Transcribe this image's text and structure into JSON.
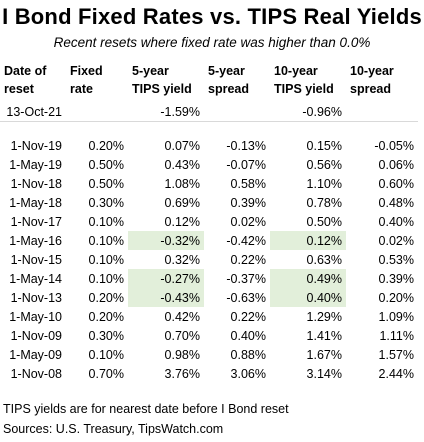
{
  "title": "I Bond Fixed Rates vs. TIPS Real Yields",
  "subtitle": "Recent resets where fixed rate was higher than 0.0%",
  "headers": [
    [
      "Date of",
      "reset"
    ],
    [
      "Fixed",
      "rate"
    ],
    [
      "5-year",
      "TIPS yield"
    ],
    [
      "5-year",
      "spread"
    ],
    [
      "10-year",
      "TIPS yield"
    ],
    [
      "10-year",
      "spread"
    ]
  ],
  "reference_row": {
    "date": "13-Oct-21",
    "tips5": "-1.59%",
    "tips10": "-0.96%"
  },
  "rows": [
    {
      "date": "1-Nov-19",
      "fixed": "0.20%",
      "tips5": "0.07%",
      "spread5": "-0.13%",
      "tips10": "0.15%",
      "spread10": "-0.05%"
    },
    {
      "date": "1-May-19",
      "fixed": "0.50%",
      "tips5": "0.43%",
      "spread5": "-0.07%",
      "tips10": "0.56%",
      "spread10": "0.06%"
    },
    {
      "date": "1-Nov-18",
      "fixed": "0.50%",
      "tips5": "1.08%",
      "spread5": "0.58%",
      "tips10": "1.10%",
      "spread10": "0.60%"
    },
    {
      "date": "1-May-18",
      "fixed": "0.30%",
      "tips5": "0.69%",
      "spread5": "0.39%",
      "tips10": "0.78%",
      "spread10": "0.48%"
    },
    {
      "date": "1-Nov-17",
      "fixed": "0.10%",
      "tips5": "0.12%",
      "spread5": "0.02%",
      "tips10": "0.50%",
      "spread10": "0.40%"
    },
    {
      "date": "1-May-16",
      "fixed": "0.10%",
      "tips5": "-0.32%",
      "spread5": "-0.42%",
      "tips10": "0.12%",
      "spread10": "0.02%"
    },
    {
      "date": "1-Nov-15",
      "fixed": "0.10%",
      "tips5": "0.32%",
      "spread5": "0.22%",
      "tips10": "0.63%",
      "spread10": "0.53%"
    },
    {
      "date": "1-May-14",
      "fixed": "0.10%",
      "tips5": "-0.27%",
      "spread5": "-0.37%",
      "tips10": "0.49%",
      "spread10": "0.39%"
    },
    {
      "date": "1-Nov-13",
      "fixed": "0.20%",
      "tips5": "-0.43%",
      "spread5": "-0.63%",
      "tips10": "0.40%",
      "spread10": "0.20%"
    },
    {
      "date": "1-May-10",
      "fixed": "0.20%",
      "tips5": "0.42%",
      "spread5": "0.22%",
      "tips10": "1.29%",
      "spread10": "1.09%"
    },
    {
      "date": "1-Nov-09",
      "fixed": "0.30%",
      "tips5": "0.70%",
      "spread5": "0.40%",
      "tips10": "1.41%",
      "spread10": "1.11%"
    },
    {
      "date": "1-May-09",
      "fixed": "0.10%",
      "tips5": "0.98%",
      "spread5": "0.88%",
      "tips10": "1.67%",
      "spread10": "1.57%"
    },
    {
      "date": "1-Nov-08",
      "fixed": "0.70%",
      "tips5": "3.76%",
      "spread5": "3.06%",
      "tips10": "3.14%",
      "spread10": "2.44%"
    }
  ],
  "highlights": {
    "color": "#e2efda",
    "cells": [
      [
        5,
        "tips5"
      ],
      [
        5,
        "tips10"
      ],
      [
        7,
        "tips5"
      ],
      [
        7,
        "tips10"
      ],
      [
        8,
        "tips5"
      ],
      [
        8,
        "tips10"
      ]
    ]
  },
  "footnote": "TIPS yields are for nearest date before I Bond reset",
  "source": "Sources: U.S. Treasury, TipsWatch.com"
}
